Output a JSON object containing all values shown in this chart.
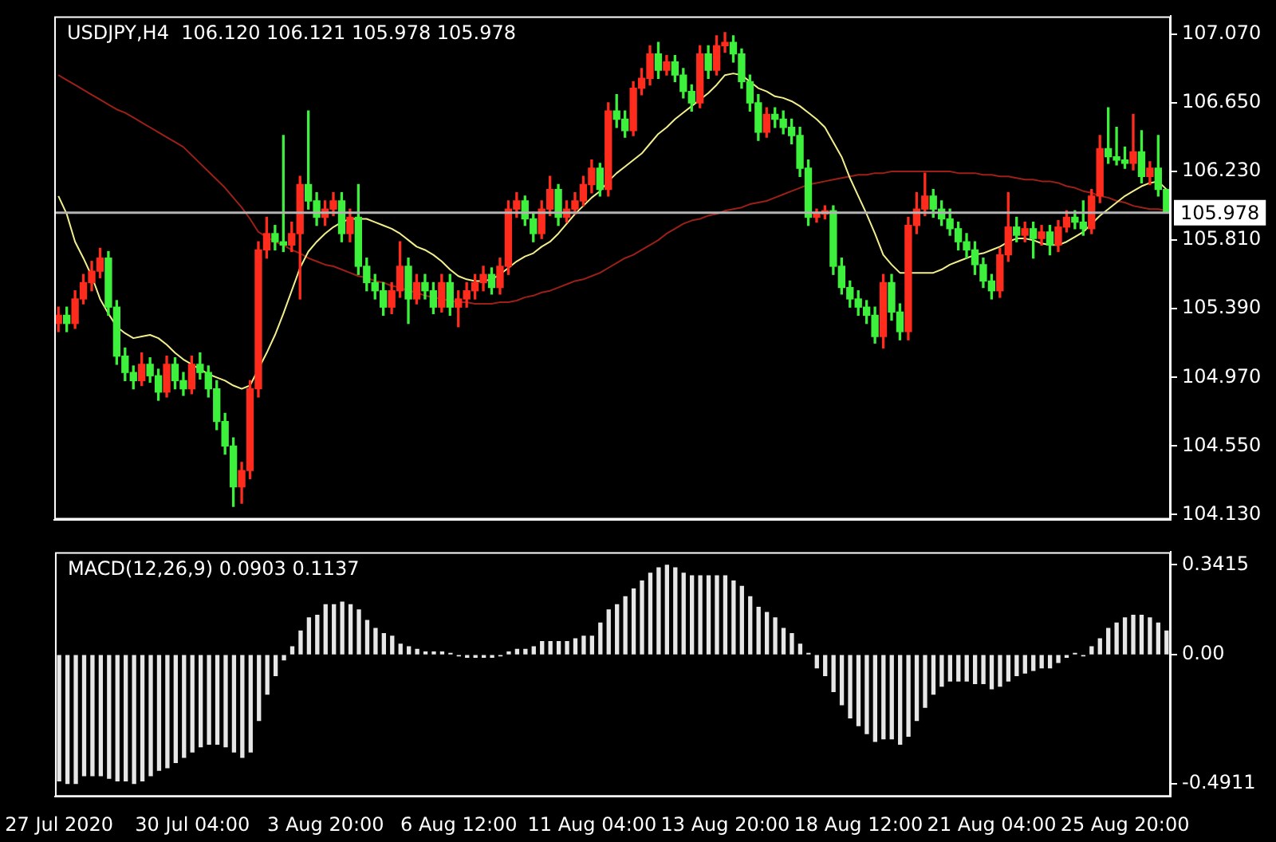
{
  "chart_data": [
    {
      "type": "candlestick",
      "title": "USDJPY,H4  106.120 106.121 105.978 105.978",
      "categories": [
        null,
        null,
        null,
        null,
        null,
        null,
        null,
        null,
        null,
        null,
        null,
        null,
        null,
        null,
        null,
        null,
        null,
        null,
        null,
        null,
        null,
        null,
        null,
        null,
        null,
        null,
        null,
        null,
        null,
        null,
        null,
        null,
        null,
        null,
        null,
        null,
        null,
        null,
        null,
        null,
        null,
        null,
        null,
        null,
        null,
        null,
        null,
        null,
        null,
        null,
        null,
        null,
        null,
        null,
        null,
        null,
        null,
        null,
        null,
        null,
        null,
        null,
        null,
        null,
        null,
        null,
        null,
        null,
        null,
        null,
        null,
        null,
        null,
        null,
        null,
        null,
        null,
        null,
        null,
        null,
        null,
        null,
        null,
        null,
        null,
        null,
        null,
        null,
        null,
        null,
        null,
        null,
        null,
        null,
        null,
        null,
        null,
        null,
        null,
        null,
        null,
        null,
        null,
        null,
        null,
        null,
        null,
        null,
        null,
        null,
        null,
        null,
        null,
        null,
        null,
        null,
        null,
        null,
        null,
        null,
        null,
        null,
        null,
        null,
        null,
        null,
        null,
        null,
        null,
        null,
        null,
        null,
        null,
        null
      ],
      "ohlc": [
        [
          105.3,
          105.4,
          105.25,
          105.35
        ],
        [
          105.35,
          105.4,
          105.25,
          105.3
        ],
        [
          105.3,
          105.5,
          105.27,
          105.45
        ],
        [
          105.45,
          105.6,
          105.42,
          105.55
        ],
        [
          105.55,
          105.68,
          105.5,
          105.62
        ],
        [
          105.62,
          105.76,
          105.58,
          105.7
        ],
        [
          105.7,
          105.74,
          105.35,
          105.4
        ],
        [
          105.4,
          105.44,
          105.05,
          105.1
        ],
        [
          105.1,
          105.15,
          104.95,
          105.0
        ],
        [
          105.0,
          105.04,
          104.9,
          104.95
        ],
        [
          104.95,
          105.12,
          104.92,
          105.05
        ],
        [
          105.05,
          105.09,
          104.94,
          104.98
        ],
        [
          104.98,
          105.02,
          104.83,
          104.88
        ],
        [
          104.88,
          105.1,
          104.85,
          105.05
        ],
        [
          105.05,
          105.09,
          104.9,
          104.95
        ],
        [
          104.95,
          105.0,
          104.86,
          104.9
        ],
        [
          104.9,
          105.1,
          104.87,
          105.05
        ],
        [
          105.05,
          105.12,
          104.96,
          105.0
        ],
        [
          105.0,
          105.04,
          104.85,
          104.9
        ],
        [
          104.9,
          104.95,
          104.65,
          104.7
        ],
        [
          104.7,
          104.75,
          104.5,
          104.55
        ],
        [
          104.55,
          104.6,
          104.18,
          104.3
        ],
        [
          104.3,
          104.45,
          104.2,
          104.4
        ],
        [
          104.4,
          104.95,
          104.35,
          104.9
        ],
        [
          104.9,
          105.8,
          104.85,
          105.75
        ],
        [
          105.75,
          105.95,
          105.7,
          105.85
        ],
        [
          105.85,
          105.9,
          105.75,
          105.8
        ],
        [
          105.8,
          106.45,
          105.74,
          105.78
        ],
        [
          105.78,
          105.92,
          105.74,
          105.85
        ],
        [
          105.85,
          106.2,
          105.45,
          106.15
        ],
        [
          106.15,
          106.6,
          106.0,
          106.05
        ],
        [
          106.05,
          106.1,
          105.9,
          105.95
        ],
        [
          105.95,
          106.05,
          105.9,
          106.0
        ],
        [
          106.0,
          106.1,
          105.96,
          106.05
        ],
        [
          106.05,
          106.1,
          105.8,
          105.85
        ],
        [
          105.85,
          106.0,
          105.8,
          105.95
        ],
        [
          105.95,
          106.15,
          105.6,
          105.65
        ],
        [
          105.65,
          105.7,
          105.5,
          105.55
        ],
        [
          105.55,
          105.6,
          105.45,
          105.5
        ],
        [
          105.5,
          105.55,
          105.35,
          105.4
        ],
        [
          105.4,
          105.55,
          105.36,
          105.5
        ],
        [
          105.5,
          105.8,
          105.46,
          105.65
        ],
        [
          105.65,
          105.7,
          105.3,
          105.45
        ],
        [
          105.45,
          105.6,
          105.42,
          105.55
        ],
        [
          105.55,
          105.6,
          105.45,
          105.5
        ],
        [
          105.5,
          105.55,
          105.36,
          105.4
        ],
        [
          105.4,
          105.6,
          105.37,
          105.55
        ],
        [
          105.55,
          105.6,
          105.35,
          105.4
        ],
        [
          105.4,
          105.5,
          105.28,
          105.45
        ],
        [
          105.45,
          105.55,
          105.4,
          105.5
        ],
        [
          105.5,
          105.6,
          105.45,
          105.55
        ],
        [
          105.55,
          105.65,
          105.5,
          105.6
        ],
        [
          105.6,
          105.64,
          105.48,
          105.52
        ],
        [
          105.52,
          105.7,
          105.48,
          105.65
        ],
        [
          105.65,
          106.05,
          105.6,
          106.0
        ],
        [
          106.0,
          106.1,
          105.95,
          106.05
        ],
        [
          106.05,
          106.08,
          105.9,
          105.94
        ],
        [
          105.94,
          105.98,
          105.8,
          105.85
        ],
        [
          105.85,
          106.05,
          105.82,
          106.0
        ],
        [
          106.0,
          106.2,
          105.96,
          106.12
        ],
        [
          106.12,
          106.15,
          105.9,
          105.95
        ],
        [
          105.95,
          106.05,
          105.92,
          106.0
        ],
        [
          106.0,
          106.1,
          105.97,
          106.05
        ],
        [
          106.05,
          106.2,
          106.02,
          106.15
        ],
        [
          106.15,
          106.3,
          106.1,
          106.25
        ],
        [
          106.25,
          106.28,
          106.08,
          106.12
        ],
        [
          106.12,
          106.65,
          106.08,
          106.6
        ],
        [
          106.6,
          106.7,
          106.5,
          106.55
        ],
        [
          106.55,
          106.6,
          106.44,
          106.48
        ],
        [
          106.48,
          106.78,
          106.45,
          106.74
        ],
        [
          106.74,
          106.86,
          106.7,
          106.8
        ],
        [
          106.8,
          107.0,
          106.76,
          106.95
        ],
        [
          106.95,
          107.02,
          106.8,
          106.85
        ],
        [
          106.85,
          106.94,
          106.82,
          106.9
        ],
        [
          106.9,
          106.94,
          106.78,
          106.82
        ],
        [
          106.82,
          106.86,
          106.68,
          106.72
        ],
        [
          106.72,
          106.76,
          106.6,
          106.65
        ],
        [
          106.65,
          107.0,
          106.62,
          106.95
        ],
        [
          106.95,
          107.0,
          106.8,
          106.85
        ],
        [
          106.85,
          107.06,
          106.82,
          107.0
        ],
        [
          107.0,
          107.08,
          106.96,
          107.02
        ],
        [
          107.02,
          107.06,
          106.9,
          106.95
        ],
        [
          106.95,
          106.98,
          106.74,
          106.78
        ],
        [
          106.78,
          106.82,
          106.6,
          106.65
        ],
        [
          106.65,
          106.7,
          106.42,
          106.47
        ],
        [
          106.47,
          106.62,
          106.44,
          106.58
        ],
        [
          106.58,
          106.62,
          106.5,
          106.55
        ],
        [
          106.55,
          106.6,
          106.46,
          106.5
        ],
        [
          106.5,
          106.55,
          106.4,
          106.45
        ],
        [
          106.45,
          106.5,
          106.2,
          106.25
        ],
        [
          106.25,
          106.3,
          105.9,
          105.95
        ],
        [
          105.95,
          106.0,
          105.92,
          105.97
        ],
        [
          105.97,
          106.02,
          105.94,
          105.99
        ],
        [
          105.99,
          106.02,
          105.6,
          105.65
        ],
        [
          105.65,
          105.7,
          105.48,
          105.52
        ],
        [
          105.52,
          105.56,
          105.4,
          105.45
        ],
        [
          105.45,
          105.5,
          105.35,
          105.4
        ],
        [
          105.4,
          105.44,
          105.3,
          105.35
        ],
        [
          105.35,
          105.4,
          105.18,
          105.22
        ],
        [
          105.22,
          105.6,
          105.15,
          105.55
        ],
        [
          105.55,
          105.6,
          105.32,
          105.37
        ],
        [
          105.37,
          105.42,
          105.2,
          105.25
        ],
        [
          105.25,
          105.95,
          105.2,
          105.9
        ],
        [
          105.9,
          106.1,
          105.85,
          106.0
        ],
        [
          106.0,
          106.22,
          105.96,
          106.08
        ],
        [
          106.08,
          106.12,
          105.95,
          106.0
        ],
        [
          106.0,
          106.05,
          105.9,
          105.94
        ],
        [
          105.94,
          106.0,
          105.84,
          105.88
        ],
        [
          105.88,
          105.92,
          105.75,
          105.8
        ],
        [
          105.8,
          105.85,
          105.7,
          105.75
        ],
        [
          105.75,
          105.8,
          105.6,
          105.66
        ],
        [
          105.66,
          105.7,
          105.52,
          105.56
        ],
        [
          105.56,
          105.6,
          105.45,
          105.5
        ],
        [
          105.5,
          105.76,
          105.46,
          105.72
        ],
        [
          105.72,
          106.1,
          105.68,
          105.89
        ],
        [
          105.89,
          105.95,
          105.8,
          105.84
        ],
        [
          105.84,
          105.92,
          105.8,
          105.88
        ],
        [
          105.88,
          105.92,
          105.7,
          105.82
        ],
        [
          105.82,
          105.9,
          105.78,
          105.86
        ],
        [
          105.86,
          105.9,
          105.72,
          105.78
        ],
        [
          105.78,
          105.93,
          105.74,
          105.89
        ],
        [
          105.89,
          105.99,
          105.86,
          105.95
        ],
        [
          105.95,
          105.99,
          105.88,
          105.92
        ],
        [
          105.92,
          106.05,
          105.84,
          105.88
        ],
        [
          105.88,
          106.12,
          105.85,
          106.08
        ],
        [
          106.08,
          106.45,
          106.04,
          106.37
        ],
        [
          106.37,
          106.62,
          106.28,
          106.32
        ],
        [
          106.32,
          106.5,
          106.27,
          106.3
        ],
        [
          106.3,
          106.38,
          106.25,
          106.28
        ],
        [
          106.28,
          106.58,
          106.24,
          106.35
        ],
        [
          106.35,
          106.48,
          106.16,
          106.2
        ],
        [
          106.2,
          106.29,
          106.15,
          106.25
        ],
        [
          106.25,
          106.45,
          106.08,
          106.12
        ],
        [
          106.12,
          106.121,
          105.978,
          105.978
        ]
      ],
      "colors": [
        "#ff2b1c",
        "#3cf03c",
        "#ff2b1c",
        "#ff2b1c",
        "#ff2b1c",
        "#ff2b1c",
        "#3cf03c",
        "#3cf03c",
        "#3cf03c",
        "#3cf03c",
        "#ff2b1c",
        "#3cf03c",
        "#3cf03c",
        "#ff2b1c",
        "#3cf03c",
        "#3cf03c",
        "#ff2b1c",
        "#3cf03c",
        "#3cf03c",
        "#3cf03c",
        "#3cf03c",
        "#3cf03c",
        "#ff2b1c",
        "#ff2b1c",
        "#ff2b1c",
        "#ff2b1c",
        "#3cf03c",
        "#3cf03c",
        "#ff2b1c",
        "#ff2b1c",
        "#3cf03c",
        "#3cf03c",
        "#ff2b1c",
        "#ff2b1c",
        "#3cf03c",
        "#ff2b1c",
        "#3cf03c",
        "#3cf03c",
        "#3cf03c",
        "#3cf03c",
        "#ff2b1c",
        "#ff2b1c",
        "#3cf03c",
        "#ff2b1c",
        "#3cf03c",
        "#3cf03c",
        "#ff2b1c",
        "#3cf03c",
        "#ff2b1c",
        "#ff2b1c",
        "#ff2b1c",
        "#ff2b1c",
        "#3cf03c",
        "#ff2b1c",
        "#ff2b1c",
        "#ff2b1c",
        "#3cf03c",
        "#3cf03c",
        "#ff2b1c",
        "#ff2b1c",
        "#3cf03c",
        "#ff2b1c",
        "#ff2b1c",
        "#ff2b1c",
        "#ff2b1c",
        "#3cf03c",
        "#ff2b1c",
        "#3cf03c",
        "#3cf03c",
        "#ff2b1c",
        "#ff2b1c",
        "#ff2b1c",
        "#3cf03c",
        "#ff2b1c",
        "#3cf03c",
        "#3cf03c",
        "#3cf03c",
        "#ff2b1c",
        "#3cf03c",
        "#ff2b1c",
        "#ff2b1c",
        "#3cf03c",
        "#3cf03c",
        "#3cf03c",
        "#3cf03c",
        "#ff2b1c",
        "#3cf03c",
        "#3cf03c",
        "#3cf03c",
        "#3cf03c",
        "#3cf03c",
        "#ff2b1c",
        "#ff2b1c",
        "#3cf03c",
        "#3cf03c",
        "#3cf03c",
        "#3cf03c",
        "#3cf03c",
        "#3cf03c",
        "#ff2b1c",
        "#3cf03c",
        "#3cf03c",
        "#ff2b1c",
        "#ff2b1c",
        "#ff2b1c",
        "#3cf03c",
        "#3cf03c",
        "#3cf03c",
        "#3cf03c",
        "#3cf03c",
        "#3cf03c",
        "#3cf03c",
        "#3cf03c",
        "#ff2b1c",
        "#ff2b1c",
        "#3cf03c",
        "#ff2b1c",
        "#3cf03c",
        "#ff2b1c",
        "#3cf03c",
        "#ff2b1c",
        "#ff2b1c",
        "#3cf03c",
        "#3cf03c",
        "#ff2b1c",
        "#ff2b1c",
        "#3cf03c",
        "#3cf03c",
        "#3cf03c",
        "#ff2b1c",
        "#3cf03c",
        "#ff2b1c",
        "#3cf03c",
        "#3cf03c"
      ],
      "series": [
        {
          "type": "line",
          "color": "#f2ee8c",
          "values": [
            106.08,
            105.97,
            105.8,
            105.7,
            105.59,
            105.45,
            105.36,
            105.28,
            105.24,
            105.21,
            105.22,
            105.23,
            105.21,
            105.17,
            105.12,
            105.08,
            105.05,
            105.02,
            104.99,
            104.97,
            104.95,
            104.92,
            104.9,
            104.92,
            105.02,
            105.12,
            105.23,
            105.36,
            105.5,
            105.64,
            105.74,
            105.8,
            105.85,
            105.89,
            105.92,
            105.94,
            105.94,
            105.94,
            105.92,
            105.9,
            105.88,
            105.85,
            105.81,
            105.77,
            105.75,
            105.72,
            105.68,
            105.63,
            105.59,
            105.57,
            105.56,
            105.56,
            105.57,
            105.6,
            105.64,
            105.68,
            105.71,
            105.73,
            105.77,
            105.8,
            105.85,
            105.91,
            105.97,
            106.02,
            106.07,
            106.11,
            106.17,
            106.22,
            106.26,
            106.3,
            106.34,
            106.4,
            106.46,
            106.5,
            106.55,
            106.59,
            106.63,
            106.67,
            106.71,
            106.76,
            106.82,
            106.83,
            106.82,
            106.78,
            106.74,
            106.72,
            106.69,
            106.68,
            106.66,
            106.63,
            106.59,
            106.55,
            106.5,
            106.41,
            106.32,
            106.19,
            106.08,
            105.97,
            105.85,
            105.72,
            105.66,
            105.61,
            105.61,
            105.61,
            105.61,
            105.61,
            105.63,
            105.66,
            105.68,
            105.7,
            105.72,
            105.73,
            105.75,
            105.77,
            105.8,
            105.82,
            105.82,
            105.81,
            105.79,
            105.78,
            105.78,
            105.8,
            105.83,
            105.86,
            105.91,
            105.96,
            106.0,
            106.04,
            106.08,
            106.11,
            106.14,
            106.16,
            106.17,
            106.12
          ]
        },
        {
          "type": "line",
          "color": "#9c2018",
          "values": [
            106.82,
            106.79,
            106.76,
            106.73,
            106.7,
            106.67,
            106.64,
            106.61,
            106.59,
            106.56,
            106.53,
            106.5,
            106.47,
            106.44,
            106.41,
            106.38,
            106.33,
            106.28,
            106.23,
            106.18,
            106.13,
            106.07,
            106.01,
            105.94,
            105.86,
            105.83,
            105.8,
            105.78,
            105.75,
            105.73,
            105.7,
            105.68,
            105.66,
            105.65,
            105.63,
            105.61,
            105.59,
            105.58,
            105.56,
            105.55,
            105.53,
            105.52,
            105.5,
            105.49,
            105.47,
            105.46,
            105.45,
            105.44,
            105.43,
            105.43,
            105.42,
            105.42,
            105.42,
            105.43,
            105.43,
            105.44,
            105.46,
            105.47,
            105.49,
            105.5,
            105.52,
            105.54,
            105.56,
            105.57,
            105.59,
            105.61,
            105.64,
            105.67,
            105.7,
            105.72,
            105.75,
            105.78,
            105.81,
            105.85,
            105.88,
            105.91,
            105.93,
            105.94,
            105.96,
            105.97,
            105.99,
            106.0,
            106.01,
            106.03,
            106.04,
            106.05,
            106.07,
            106.09,
            106.11,
            106.13,
            106.15,
            106.16,
            106.17,
            106.18,
            106.19,
            106.2,
            106.21,
            106.21,
            106.22,
            106.22,
            106.23,
            106.23,
            106.23,
            106.23,
            106.23,
            106.23,
            106.23,
            106.23,
            106.22,
            106.22,
            106.22,
            106.21,
            106.21,
            106.2,
            106.2,
            106.19,
            106.18,
            106.18,
            106.17,
            106.17,
            106.16,
            106.14,
            106.13,
            106.11,
            106.1,
            106.08,
            106.07,
            106.05,
            106.04,
            106.02,
            106.01,
            106.0,
            106.0,
            105.99
          ]
        }
      ],
      "ylim": [
        104.1,
        107.18
      ],
      "yticks": [
        {
          "value": 107.07,
          "label": "107.070"
        },
        {
          "value": 106.65,
          "label": "106.650"
        },
        {
          "value": 106.23,
          "label": "106.230"
        },
        {
          "value": 105.81,
          "label": "105.810"
        },
        {
          "value": 105.39,
          "label": "105.390"
        },
        {
          "value": 104.97,
          "label": "104.970"
        },
        {
          "value": 104.55,
          "label": "104.550"
        },
        {
          "value": 104.13,
          "label": "104.130"
        }
      ],
      "ref_lines": [
        {
          "axis": "y",
          "value": 105.978,
          "label": "105.978",
          "color": "#b4b4b4"
        }
      ],
      "tick_labels": "y"
    },
    {
      "type": "bar",
      "title": "MACD(12,26,9) 0.0903 0.1137",
      "categories": [
        "27 Jul 2020",
        null,
        null,
        null,
        null,
        null,
        null,
        null,
        null,
        null,
        null,
        null,
        null,
        null,
        null,
        null,
        "30 Jul 04:00",
        null,
        null,
        null,
        null,
        null,
        null,
        null,
        null,
        null,
        null,
        null,
        null,
        null,
        null,
        null,
        "3 Aug 20:00",
        null,
        null,
        null,
        null,
        null,
        null,
        null,
        null,
        null,
        null,
        null,
        null,
        null,
        null,
        null,
        "6 Aug 12:00",
        null,
        null,
        null,
        null,
        null,
        null,
        null,
        null,
        null,
        null,
        null,
        null,
        null,
        null,
        null,
        "11 Aug 04:00",
        null,
        null,
        null,
        null,
        null,
        null,
        null,
        null,
        null,
        null,
        null,
        null,
        null,
        null,
        null,
        "13 Aug 20:00",
        null,
        null,
        null,
        null,
        null,
        null,
        null,
        null,
        null,
        null,
        null,
        null,
        null,
        null,
        null,
        "18 Aug 12:00",
        null,
        null,
        null,
        null,
        null,
        null,
        null,
        null,
        null,
        null,
        null,
        null,
        null,
        null,
        null,
        "21 Aug 04:00",
        null,
        null,
        null,
        null,
        null,
        null,
        null,
        null,
        null,
        null,
        null,
        null,
        null,
        null,
        null,
        "25 Aug 20:00",
        null,
        null,
        null,
        null,
        null
      ],
      "values": [
        -0.48,
        -0.49,
        -0.49,
        -0.46,
        -0.46,
        -0.46,
        -0.47,
        -0.48,
        -0.48,
        -0.49,
        -0.48,
        -0.46,
        -0.44,
        -0.43,
        -0.41,
        -0.39,
        -0.37,
        -0.35,
        -0.34,
        -0.34,
        -0.35,
        -0.37,
        -0.39,
        -0.37,
        -0.25,
        -0.15,
        -0.08,
        -0.02,
        0.03,
        0.09,
        0.14,
        0.15,
        0.19,
        0.19,
        0.2,
        0.19,
        0.17,
        0.13,
        0.1,
        0.08,
        0.07,
        0.04,
        0.03,
        0.02,
        0.01,
        0.01,
        0.01,
        0.005,
        -0.005,
        -0.01,
        -0.01,
        -0.01,
        -0.01,
        -0.005,
        0.01,
        0.02,
        0.02,
        0.03,
        0.05,
        0.05,
        0.05,
        0.05,
        0.06,
        0.07,
        0.07,
        0.12,
        0.17,
        0.19,
        0.22,
        0.25,
        0.28,
        0.31,
        0.33,
        0.34,
        0.33,
        0.31,
        0.3,
        0.3,
        0.3,
        0.3,
        0.3,
        0.28,
        0.26,
        0.22,
        0.18,
        0.16,
        0.14,
        0.1,
        0.08,
        0.04,
        0.005,
        -0.05,
        -0.08,
        -0.14,
        -0.19,
        -0.24,
        -0.27,
        -0.3,
        -0.33,
        -0.32,
        -0.32,
        -0.34,
        -0.31,
        -0.25,
        -0.2,
        -0.15,
        -0.12,
        -0.1,
        -0.1,
        -0.1,
        -0.11,
        -0.11,
        -0.13,
        -0.12,
        -0.1,
        -0.08,
        -0.07,
        -0.06,
        -0.05,
        -0.05,
        -0.03,
        -0.01,
        0.005,
        -0.005,
        0.03,
        0.06,
        0.1,
        0.12,
        0.14,
        0.15,
        0.15,
        0.14,
        0.12,
        0.09
      ],
      "color": "#e6e6e6",
      "ylim": [
        -0.54,
        0.39
      ],
      "yticks": [
        {
          "value": 0.3415,
          "label": "0.3415"
        },
        {
          "value": 0,
          "label": "0.00"
        },
        {
          "value": -0.4911,
          "label": "-0.4911"
        }
      ]
    }
  ]
}
